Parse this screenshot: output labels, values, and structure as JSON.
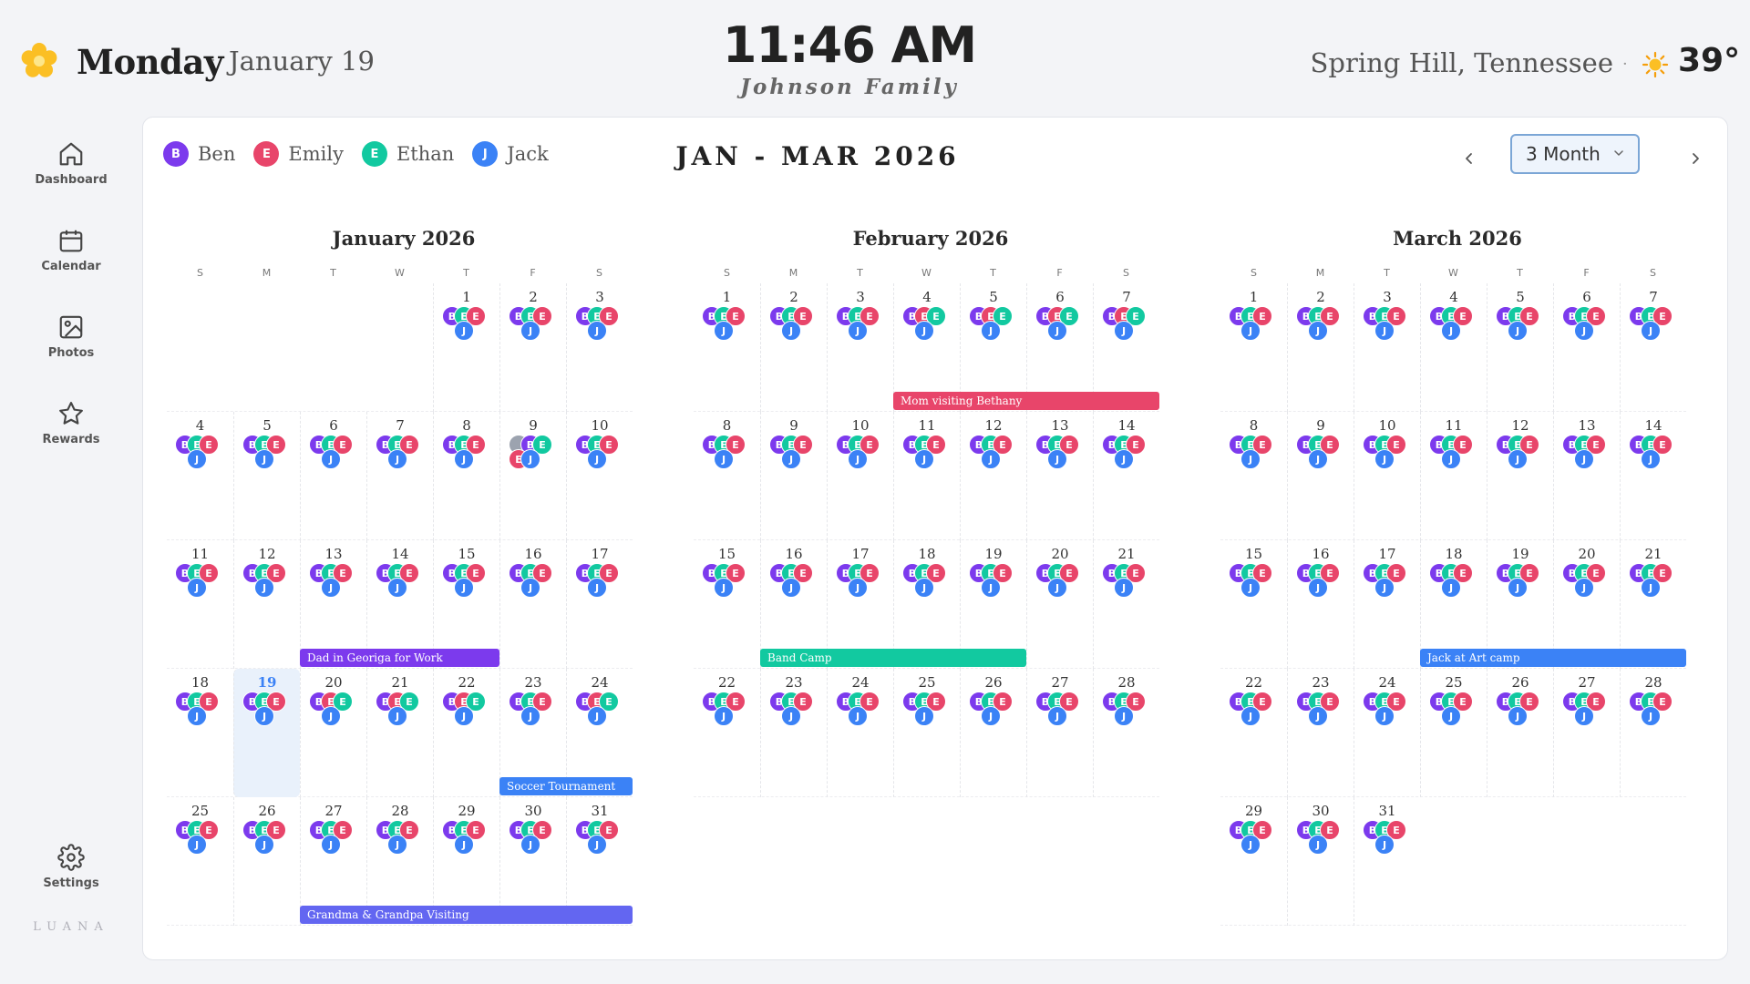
{
  "header": {
    "day": "Monday",
    "separator": "·",
    "date": "January 19",
    "time": "11:46 AM",
    "family": "Johnson Family",
    "location": "Spring Hill, Tennessee",
    "temperature": "39°"
  },
  "sidebar": {
    "items": [
      {
        "label": "Dashboard",
        "icon": "home-icon"
      },
      {
        "label": "Calendar",
        "icon": "calendar-icon"
      },
      {
        "label": "Photos",
        "icon": "image-icon"
      },
      {
        "label": "Rewards",
        "icon": "star-icon"
      }
    ],
    "settings_label": "Settings",
    "brand": "LUANA"
  },
  "colors": {
    "Ben": "#7c3aed",
    "Emily": "#e8456a",
    "Ethan": "#12c9a0",
    "Jack": "#3b82f6",
    "done": "#9ca3af"
  },
  "legend": [
    {
      "initial": "B",
      "name": "Ben"
    },
    {
      "initial": "E",
      "name": "Emily"
    },
    {
      "initial": "E",
      "name": "Ethan"
    },
    {
      "initial": "J",
      "name": "Jack"
    }
  ],
  "calendar": {
    "range_title": "JAN - MAR 2026",
    "view_label": "3 Month",
    "weekday_letters": [
      "S",
      "M",
      "T",
      "W",
      "T",
      "F",
      "S"
    ],
    "months": [
      {
        "title": "January 2026",
        "first_weekday": 4,
        "days": 31
      },
      {
        "title": "February 2026",
        "first_weekday": 0,
        "days": 28
      },
      {
        "title": "March 2026",
        "first_weekday": 0,
        "days": 31
      }
    ],
    "today": {
      "month": 0,
      "day": 19
    },
    "events": [
      {
        "title": "Mom visiting Bethany",
        "month": 1,
        "start_day": 4,
        "end_day": 7,
        "color": "#e8456a"
      },
      {
        "title": "Dad in Georiga for Work",
        "month": 0,
        "start_day": 13,
        "end_day": 15,
        "color": "#7c3aed"
      },
      {
        "title": "Jack at Art camp",
        "month": 2,
        "start_day": 18,
        "end_day": 21,
        "color": "#3b82f6"
      },
      {
        "title": "Soccer Tournament",
        "month": 0,
        "start_day": 23,
        "end_day": 24,
        "color": "#3b82f6"
      },
      {
        "title": "Band Camp",
        "month": 1,
        "start_day": 16,
        "end_day": 19,
        "color": "#12c9a0"
      },
      {
        "title": "Grandma & Grandpa Visiting",
        "month": 0,
        "start_day": 27,
        "end_day": 31,
        "color": "#6366f1"
      }
    ],
    "green_e_days": [
      {
        "month": 0,
        "day": 9
      },
      {
        "month": 0,
        "day": 20
      },
      {
        "month": 0,
        "day": 21
      },
      {
        "month": 0,
        "day": 22
      },
      {
        "month": 0,
        "day": 24
      },
      {
        "month": 1,
        "day": 4
      },
      {
        "month": 1,
        "day": 5
      },
      {
        "month": 1,
        "day": 6
      },
      {
        "month": 1,
        "day": 7
      }
    ],
    "special_day": {
      "month": 0,
      "day": 9
    }
  }
}
